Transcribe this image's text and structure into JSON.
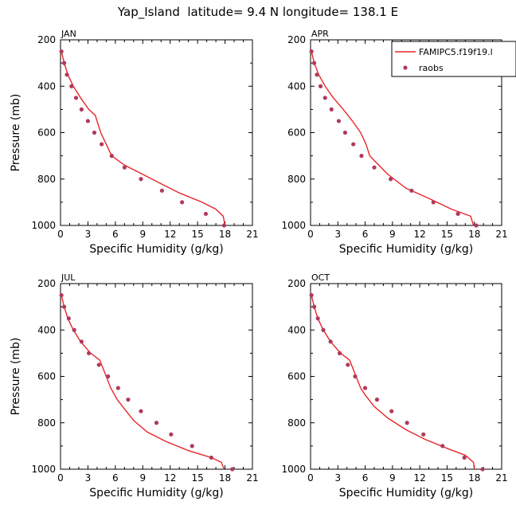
{
  "title": "Yap_Island  latitude= 9.4 N longitude= 138.1 E",
  "colors": {
    "model_line": "#e8262a",
    "obs_marker": "#b03a5b",
    "axis": "#000000"
  },
  "legend": {
    "entries": [
      {
        "label": "FAMIPC5.f19f19.l",
        "kind": "line"
      },
      {
        "label": "raobs",
        "kind": "marker"
      }
    ],
    "placement": "top-right of APR panel"
  },
  "chart_data": [
    {
      "type": "line",
      "panel": "JAN",
      "xlabel": "Specific Humidity (g/kg)",
      "ylabel": "Pressure (mb)",
      "xlim": [
        0,
        21
      ],
      "ylim": [
        1000,
        200
      ],
      "y_inverted": true,
      "xticks": [
        0,
        3,
        6,
        9,
        12,
        15,
        18,
        21
      ],
      "yticks": [
        200,
        400,
        600,
        800,
        1000
      ],
      "series": [
        {
          "name": "FAMIPC5.f19f19.l",
          "style": "line",
          "x": [
            0.1,
            0.4,
            0.8,
            1.4,
            2.2,
            3.1,
            3.8,
            4.4,
            5.0,
            5.6,
            7.0,
            9.0,
            11.0,
            13.0,
            15.5,
            17.0,
            17.8,
            18.0
          ],
          "y": [
            250,
            300,
            350,
            400,
            450,
            500,
            525,
            600,
            650,
            700,
            740,
            780,
            820,
            860,
            900,
            930,
            960,
            1000
          ]
        },
        {
          "name": "raobs",
          "style": "markers",
          "x": [
            0.1,
            0.4,
            0.7,
            1.2,
            1.7,
            2.3,
            3.0,
            3.7,
            4.5,
            5.6,
            7.0,
            8.8,
            11.1,
            13.3,
            15.9,
            17.9
          ],
          "y": [
            250,
            300,
            350,
            400,
            450,
            500,
            550,
            600,
            650,
            700,
            750,
            800,
            850,
            900,
            950,
            1000
          ]
        }
      ]
    },
    {
      "type": "line",
      "panel": "APR",
      "xlabel": "Specific Humidity (g/kg)",
      "ylabel": "",
      "xlim": [
        0,
        21
      ],
      "ylim": [
        1000,
        200
      ],
      "y_inverted": true,
      "xticks": [
        0,
        3,
        6,
        9,
        12,
        15,
        18,
        21
      ],
      "yticks": [
        200,
        400,
        600,
        800,
        1000
      ],
      "series": [
        {
          "name": "FAMIPC5.f19f19.l",
          "style": "line",
          "x": [
            0.1,
            0.4,
            0.9,
            1.6,
            2.5,
            3.6,
            4.6,
            5.5,
            6.1,
            6.5,
            7.0,
            8.5,
            10.5,
            12.8,
            15.5,
            17.6,
            17.9
          ],
          "y": [
            250,
            300,
            350,
            400,
            450,
            500,
            550,
            600,
            650,
            700,
            720,
            780,
            840,
            880,
            930,
            960,
            1000
          ]
        },
        {
          "name": "raobs",
          "style": "markers",
          "x": [
            0.1,
            0.4,
            0.7,
            1.1,
            1.6,
            2.3,
            3.1,
            3.8,
            4.7,
            5.6,
            7.0,
            8.8,
            11.1,
            13.5,
            16.2,
            18.2
          ],
          "y": [
            250,
            300,
            350,
            400,
            450,
            500,
            550,
            600,
            650,
            700,
            750,
            800,
            850,
            900,
            950,
            1000
          ]
        }
      ]
    },
    {
      "type": "line",
      "panel": "JUL",
      "xlabel": "Specific Humidity (g/kg)",
      "ylabel": "Pressure (mb)",
      "xlim": [
        0,
        21
      ],
      "ylim": [
        1000,
        200
      ],
      "y_inverted": true,
      "xticks": [
        0,
        3,
        6,
        9,
        12,
        15,
        18,
        21
      ],
      "yticks": [
        200,
        400,
        600,
        800,
        1000
      ],
      "series": [
        {
          "name": "FAMIPC5.f19f19.l",
          "style": "line",
          "x": [
            0.1,
            0.4,
            0.8,
            1.4,
            2.2,
            3.3,
            4.3,
            5.0,
            5.5,
            6.2,
            7.0,
            8.0,
            9.5,
            11.5,
            14.0,
            16.5,
            17.6,
            17.9
          ],
          "y": [
            250,
            300,
            350,
            400,
            450,
            500,
            530,
            600,
            650,
            700,
            740,
            790,
            840,
            880,
            920,
            950,
            970,
            1000
          ]
        },
        {
          "name": "raobs",
          "style": "markers",
          "x": [
            0.1,
            0.4,
            0.9,
            1.5,
            2.3,
            3.1,
            4.2,
            5.2,
            6.3,
            7.4,
            8.8,
            10.5,
            12.1,
            14.4,
            16.5,
            18.8
          ],
          "y": [
            250,
            300,
            350,
            400,
            450,
            500,
            550,
            600,
            650,
            700,
            750,
            800,
            850,
            900,
            950,
            1000
          ]
        }
      ]
    },
    {
      "type": "line",
      "panel": "OCT",
      "xlabel": "Specific Humidity (g/kg)",
      "ylabel": "",
      "xlim": [
        0,
        21
      ],
      "ylim": [
        1000,
        200
      ],
      "y_inverted": true,
      "xticks": [
        0,
        3,
        6,
        9,
        12,
        15,
        18,
        21
      ],
      "yticks": [
        200,
        400,
        600,
        800,
        1000
      ],
      "series": [
        {
          "name": "FAMIPC5.f19f19.l",
          "style": "line",
          "x": [
            0.1,
            0.4,
            0.8,
            1.4,
            2.2,
            3.3,
            4.3,
            5.0,
            5.5,
            6.0,
            6.4,
            7.0,
            8.5,
            10.5,
            12.5,
            15.0,
            17.0,
            17.9,
            18.0
          ],
          "y": [
            250,
            300,
            350,
            400,
            450,
            500,
            530,
            600,
            650,
            680,
            700,
            730,
            780,
            830,
            870,
            910,
            940,
            970,
            1000
          ]
        },
        {
          "name": "raobs",
          "style": "markers",
          "x": [
            0.1,
            0.4,
            0.8,
            1.4,
            2.2,
            3.2,
            4.1,
            4.9,
            6.0,
            7.3,
            8.9,
            10.6,
            12.4,
            14.5,
            16.9,
            18.9
          ],
          "y": [
            250,
            300,
            350,
            400,
            450,
            500,
            550,
            600,
            650,
            700,
            750,
            800,
            850,
            900,
            950,
            1000
          ]
        }
      ]
    }
  ]
}
